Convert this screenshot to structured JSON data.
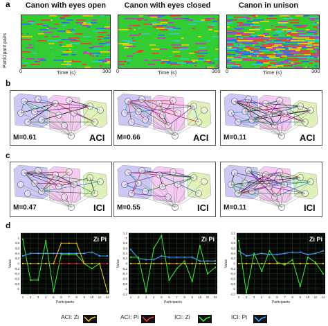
{
  "panels": {
    "a": "a",
    "b": "b",
    "c": "c",
    "d": "d"
  },
  "conditions": [
    "Canon with eyes open",
    "Canon with eyes closed",
    "Canon in unison"
  ],
  "raster": {
    "ylabel": "Participant pairs",
    "xlabel": "Time (s)",
    "t0": "0",
    "t1": "300",
    "colors": [
      "#33cc33",
      "#ff3333",
      "#3366ff",
      "#ffcc00",
      "#cc33cc",
      "#33cccc"
    ]
  },
  "aci": {
    "tag": "ACI",
    "modularity": [
      "M=0.61",
      "M=0.66",
      "M=0.11"
    ]
  },
  "ici": {
    "tag": "ICI",
    "modularity": [
      "M=0.47",
      "M=0.55",
      "M=0.11"
    ]
  },
  "chart_data": [
    {
      "type": "line",
      "title": "",
      "annotation": "Zi Pi",
      "xlabel": "Participants",
      "ylabel": "Value",
      "x": [
        1,
        2,
        3,
        4,
        5,
        6,
        7,
        8,
        9,
        10,
        11,
        12
      ],
      "ylim": [
        -1.2,
        1.2
      ],
      "series": [
        {
          "name": "ACI: Zi",
          "values": [
            0,
            0,
            0,
            0,
            0,
            0.8,
            0.8,
            0.8,
            0,
            0,
            0,
            -1.1
          ]
        },
        {
          "name": "ACI: Pi",
          "values": [
            0,
            0,
            0,
            0,
            0,
            0,
            0,
            0,
            0,
            0,
            0,
            0
          ]
        },
        {
          "name": "ICI: Zi",
          "values": [
            0.95,
            -0.65,
            -0.65,
            0.9,
            -1.1,
            0.35,
            0.35,
            0.35,
            0,
            -0.2,
            0,
            0
          ]
        },
        {
          "name": "ICI: Pi",
          "values": [
            0.3,
            0.4,
            0.4,
            0.4,
            0.4,
            0.4,
            0.4,
            0.4,
            0.4,
            0.45,
            0.3,
            0.3
          ]
        }
      ]
    },
    {
      "type": "line",
      "title": "",
      "annotation": "Zi Pi",
      "xlabel": "Participants",
      "ylabel": "Value",
      "x": [
        1,
        2,
        3,
        4,
        5,
        6,
        7,
        8,
        9,
        10,
        11,
        12
      ],
      "ylim": [
        -1.2,
        1.2
      ],
      "series": [
        {
          "name": "ACI: Zi",
          "values": [
            0,
            0,
            0,
            0,
            0,
            0,
            0,
            0,
            0,
            0,
            0,
            0
          ]
        },
        {
          "name": "ACI: Pi",
          "values": [
            0,
            0,
            0,
            0,
            0,
            0,
            0,
            0,
            0,
            0,
            0,
            0
          ]
        },
        {
          "name": "ICI: Zi",
          "values": [
            0.25,
            0.25,
            -1.1,
            0.6,
            1.1,
            -0.65,
            -0.2,
            0.1,
            -0.7,
            0.7,
            -0.4,
            -0.15
          ]
        },
        {
          "name": "ICI: Pi",
          "values": [
            0.55,
            0.2,
            0.15,
            0.15,
            0.3,
            0.25,
            0.25,
            0.25,
            0.25,
            0.1,
            0.1,
            0.1
          ]
        }
      ]
    },
    {
      "type": "line",
      "title": "",
      "annotation": "Zi Pi",
      "xlabel": "Participants",
      "ylabel": "Value",
      "x": [
        1,
        2,
        3,
        4,
        5,
        6,
        7,
        8,
        9,
        10,
        11,
        12
      ],
      "ylim": [
        -1.2,
        1.2
      ],
      "series": [
        {
          "name": "ACI: Zi",
          "values": [
            0,
            0,
            0,
            0,
            0,
            0,
            0,
            0,
            0,
            0,
            0,
            0
          ]
        },
        {
          "name": "ACI: Pi",
          "values": [
            0,
            0,
            0,
            0,
            0,
            0,
            0,
            0,
            0,
            0,
            0,
            0
          ]
        },
        {
          "name": "ICI: Zi",
          "values": [
            0.9,
            -1.15,
            0.4,
            -0.3,
            0.5,
            0.05,
            -0.05,
            0.15,
            -0.9,
            0.25,
            0.05,
            -0.4
          ]
        },
        {
          "name": "ICI: Pi",
          "values": [
            0.5,
            0.3,
            0.35,
            0.4,
            0.35,
            0.35,
            0.4,
            0.45,
            0.45,
            0.35,
            0.4,
            0.5
          ]
        }
      ]
    }
  ],
  "chart_axis": {
    "yticks": [
      "1",
      "0,8",
      "0,6",
      "0,4",
      "0,2",
      "0",
      "-0,2",
      "-0,4",
      "-0,6",
      "-0,8",
      "-1"
    ],
    "yticks_alt": [
      "1,2",
      "1",
      "0,8",
      "0,6",
      "0,4",
      "0,2",
      "0",
      "-0,2",
      "-0,4",
      "-0,6",
      "-0,8",
      "-1",
      "-1,2"
    ]
  },
  "legend": [
    {
      "name": "ACI: Zi",
      "color": "#e6c619"
    },
    {
      "name": "ACI: Pi",
      "color": "#e83838"
    },
    {
      "name": "ICI: Zi",
      "color": "#3ddc3d"
    },
    {
      "name": "ICI: Pi",
      "color": "#3fa0ff"
    }
  ]
}
